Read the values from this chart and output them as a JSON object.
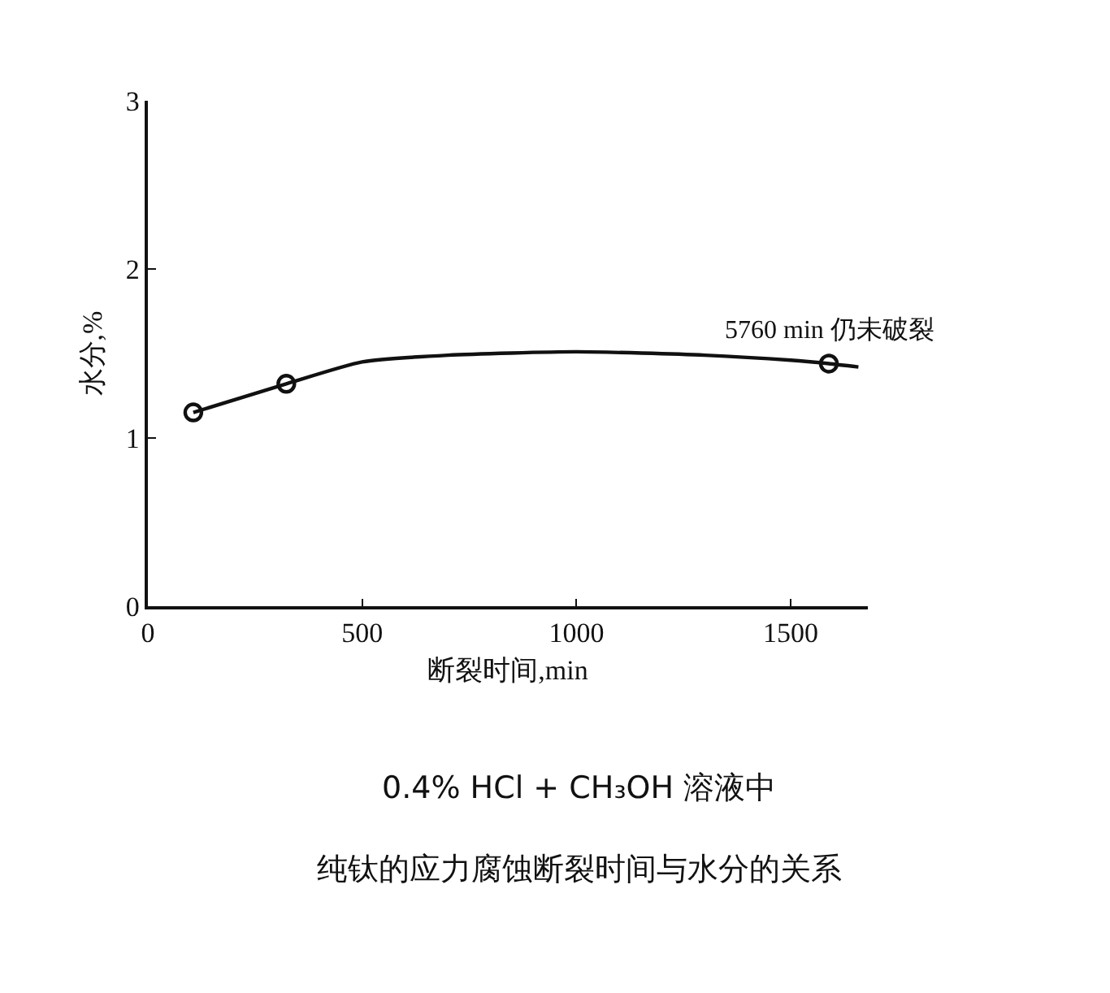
{
  "chart_data": {
    "type": "line",
    "title": "0.4% HCl + CH₃OH 溶液中",
    "subtitle": "纯钛的应力腐蚀断裂时间与水分的关系",
    "xlabel": "断裂时间,min",
    "ylabel": "水分,%",
    "xlim": [
      0,
      1680
    ],
    "xticks": [
      0,
      500,
      1000,
      1500
    ],
    "ylim": [
      0,
      3
    ],
    "yticks": [
      0,
      1,
      2,
      3
    ],
    "series": [
      {
        "type": "line",
        "color": "#111111",
        "marker": "none",
        "x": [
          106,
          323,
          500,
          700,
          1000,
          1300,
          1500,
          1589,
          1658
        ],
        "values": [
          1.15,
          1.32,
          1.45,
          1.49,
          1.51,
          1.49,
          1.46,
          1.44,
          1.42
        ]
      },
      {
        "type": "scatter",
        "color": "#111111",
        "marker": "circle",
        "x": [
          106,
          323,
          1589
        ],
        "values": [
          1.15,
          1.32,
          1.44
        ]
      }
    ],
    "annotations": [
      {
        "text": "5760 min 仍未破裂",
        "x": 1589,
        "y": 1.44
      }
    ]
  }
}
